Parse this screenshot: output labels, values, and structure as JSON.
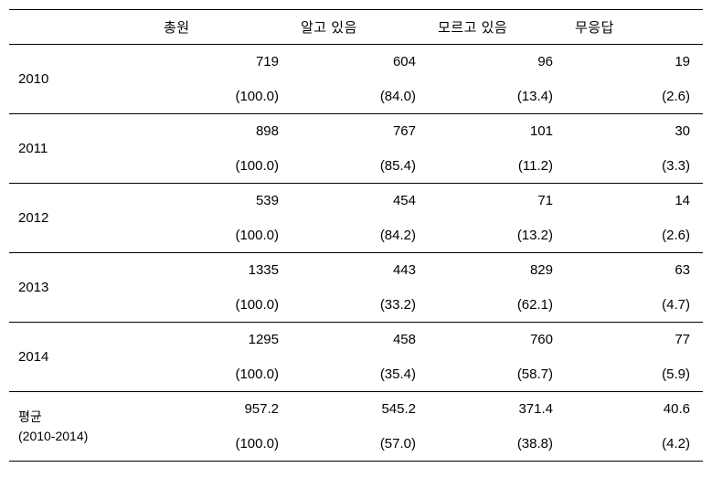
{
  "table": {
    "columns": [
      "총원",
      "알고 있음",
      "모르고 있음",
      "무응답"
    ],
    "rows": [
      {
        "label": "2010",
        "values": [
          "719",
          "604",
          "96",
          "19"
        ],
        "percents": [
          "(100.0)",
          "(84.0)",
          "(13.4)",
          "(2.6)"
        ]
      },
      {
        "label": "2011",
        "values": [
          "898",
          "767",
          "101",
          "30"
        ],
        "percents": [
          "(100.0)",
          "(85.4)",
          "(11.2)",
          "(3.3)"
        ]
      },
      {
        "label": "2012",
        "values": [
          "539",
          "454",
          "71",
          "14"
        ],
        "percents": [
          "(100.0)",
          "(84.2)",
          "(13.2)",
          "(2.6)"
        ]
      },
      {
        "label": "2013",
        "values": [
          "1335",
          "443",
          "829",
          "63"
        ],
        "percents": [
          "(100.0)",
          "(33.2)",
          "(62.1)",
          "(4.7)"
        ]
      },
      {
        "label": "2014",
        "values": [
          "1295",
          "458",
          "760",
          "77"
        ],
        "percents": [
          "(100.0)",
          "(35.4)",
          "(58.7)",
          "(5.9)"
        ]
      },
      {
        "label": "평균",
        "sublabel": "(2010-2014)",
        "values": [
          "957.2",
          "545.2",
          "371.4",
          "40.6"
        ],
        "percents": [
          "(100.0)",
          "(57.0)",
          "(38.8)",
          "(4.2)"
        ]
      }
    ]
  }
}
